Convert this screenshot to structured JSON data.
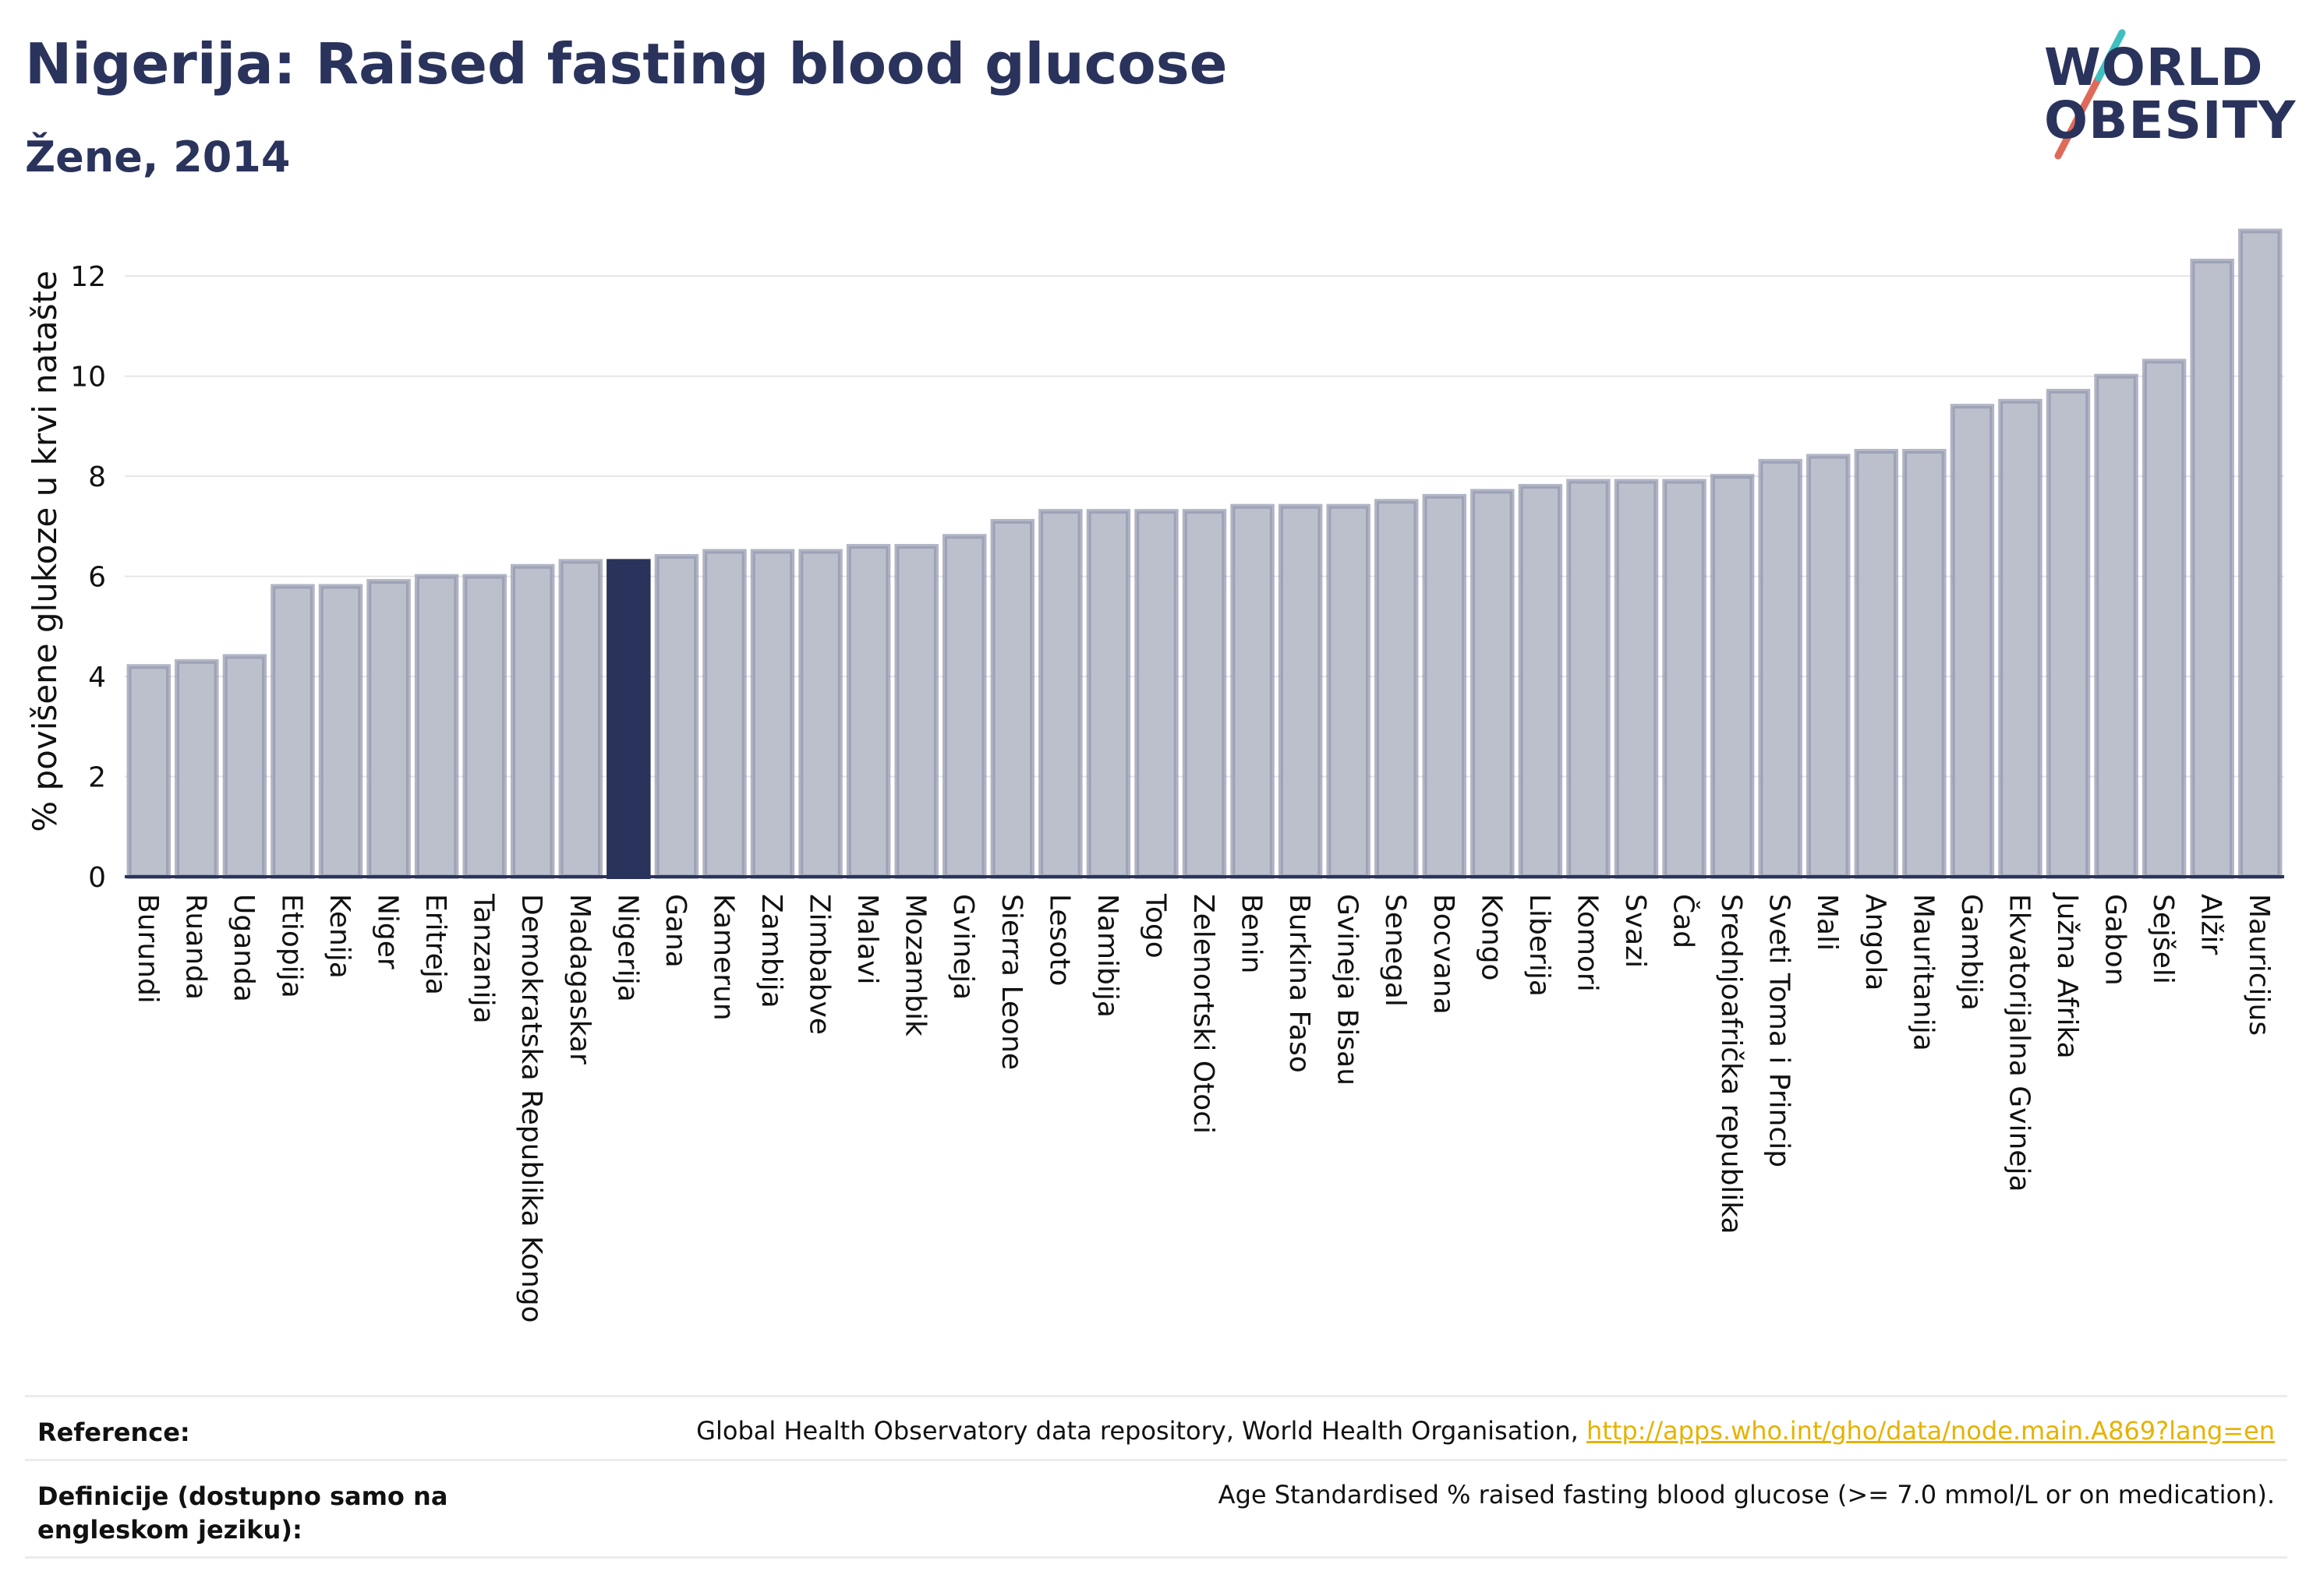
{
  "header": {
    "title": "Nigerija: Raised fasting blood glucose",
    "subtitle": "Žene, 2014"
  },
  "logo": {
    "line1": "WORLD",
    "line2": "OBESITY",
    "slash_colors": [
      "#e06a5a",
      "#3fbfbf"
    ]
  },
  "colors": {
    "bar": "#bcc0cc",
    "bar_border": "#9096ad",
    "highlight": "#2a335c",
    "axis": "#2a335c",
    "grid": "#e6e6e6"
  },
  "chart_data": {
    "type": "bar",
    "title": "Nigerija: Raised fasting blood glucose",
    "subtitle": "Žene, 2014",
    "xlabel": "",
    "ylabel": "% povišene glukoze u krvi natašte",
    "ylim": [
      0,
      13
    ],
    "yticks": [
      0,
      2,
      4,
      6,
      8,
      10,
      12
    ],
    "grid": true,
    "highlight": "Nigerija",
    "categories": [
      "Burundi",
      "Ruanda",
      "Uganda",
      "Etiopija",
      "Kenija",
      "Niger",
      "Eritreja",
      "Tanzanija",
      "Demokratska Republika Kongo",
      "Madagaskar",
      "Nigerija",
      "Gana",
      "Kamerun",
      "Zambija",
      "Zimbabve",
      "Malavi",
      "Mozambik",
      "Gvineja",
      "Sierra Leone",
      "Lesoto",
      "Namibija",
      "Togo",
      "Zelenortski Otoci",
      "Benin",
      "Burkina Faso",
      "Gvineja Bisau",
      "Senegal",
      "Bocvana",
      "Kongo",
      "Liberija",
      "Komori",
      "Svazi",
      "Čad",
      "Srednjoafrička republika",
      "Sveti Toma i Princip",
      "Mali",
      "Angola",
      "Mauritanija",
      "Gambija",
      "Ekvatorijalna Gvineja",
      "Južna Afrika",
      "Gabon",
      "Sejšeli",
      "Alžir",
      "Mauricijus"
    ],
    "values": [
      4.2,
      4.3,
      4.4,
      5.8,
      5.8,
      5.9,
      6.0,
      6.0,
      6.2,
      6.3,
      6.3,
      6.4,
      6.5,
      6.5,
      6.5,
      6.6,
      6.6,
      6.8,
      7.1,
      7.3,
      7.3,
      7.3,
      7.3,
      7.4,
      7.4,
      7.4,
      7.5,
      7.6,
      7.7,
      7.8,
      7.9,
      7.9,
      7.9,
      8.0,
      8.3,
      8.4,
      8.5,
      8.5,
      9.4,
      9.5,
      9.7,
      10.0,
      10.3,
      12.3,
      12.9
    ]
  },
  "footer": {
    "reference_label": "Reference:",
    "reference_text": "Global Health Observatory data repository, World Health Organisation, ",
    "reference_link": "http://apps.who.int/gho/data/node.main.A869?lang=en",
    "definition_label": "Definicije (dostupno samo na engleskom jeziku):",
    "definition_text": "Age Standardised % raised fasting blood glucose (>= 7.0 mmol/L or on medication)."
  }
}
